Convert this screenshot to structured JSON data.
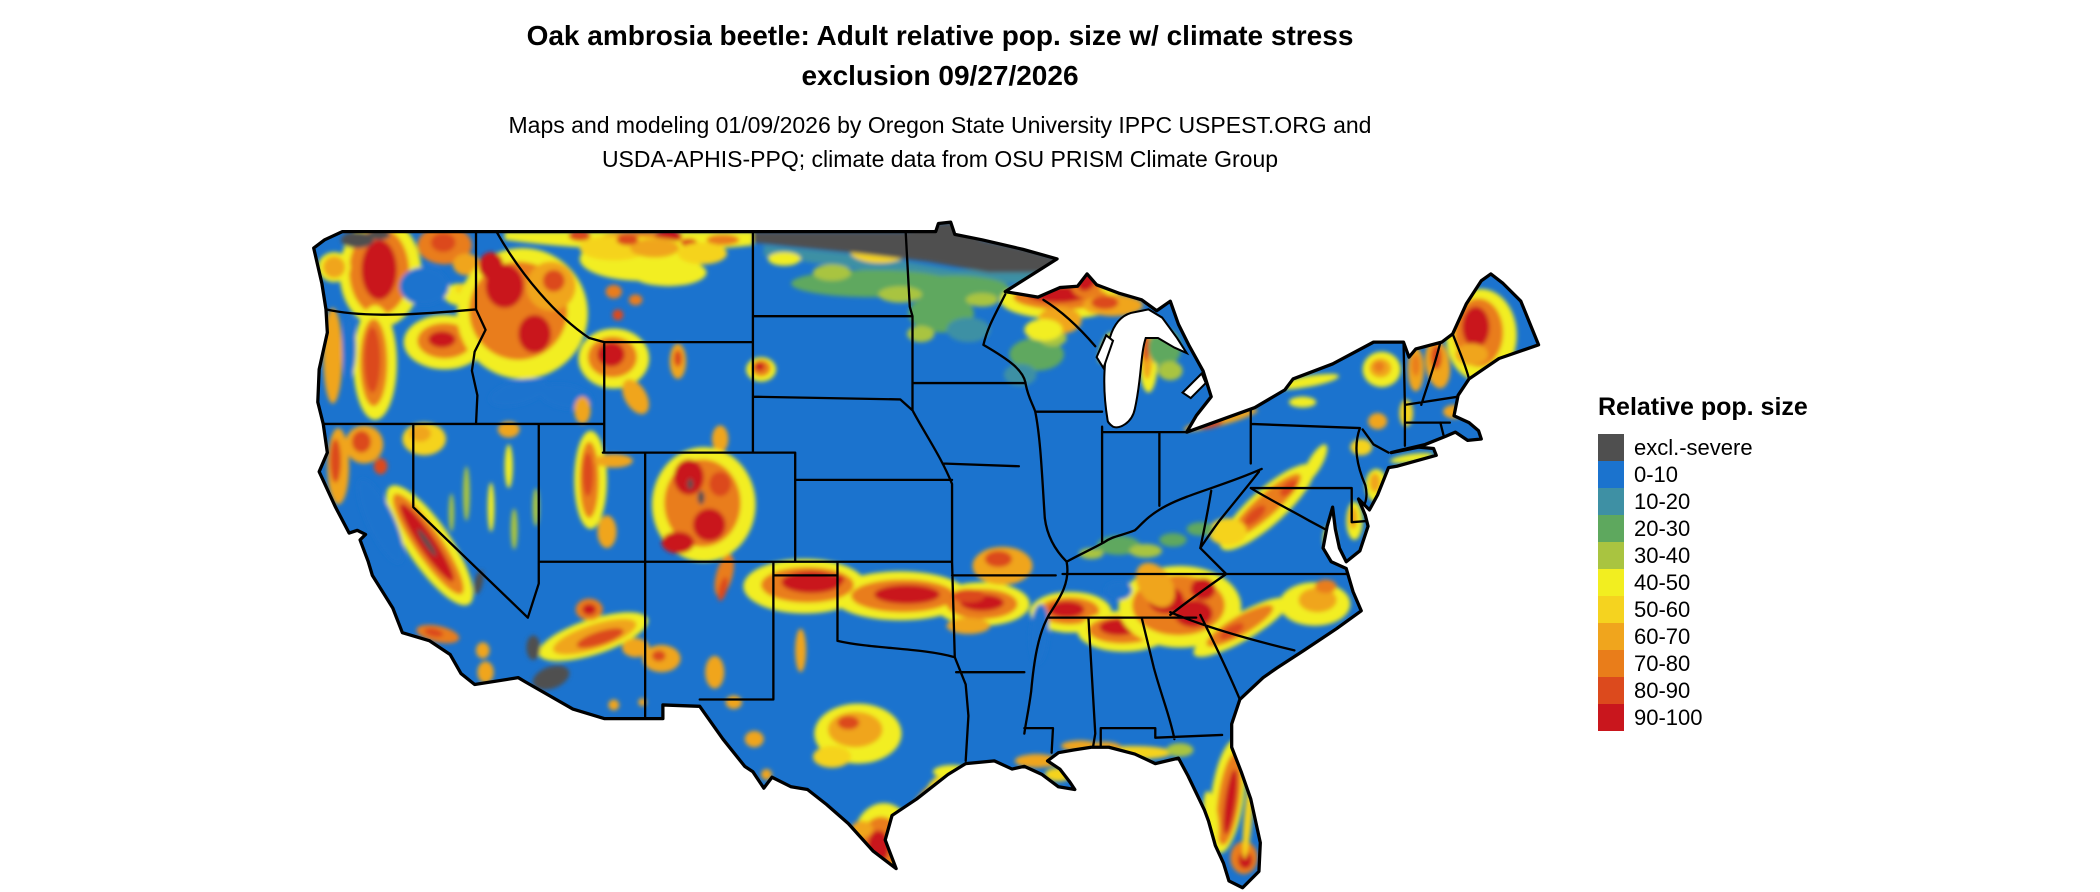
{
  "header": {
    "title_line1": "Oak ambrosia beetle: Adult relative pop. size w/ climate stress",
    "title_line2": "exclusion 09/27/2026",
    "subtitle_line1": "Maps and modeling 01/09/2026 by Oregon State University IPPC USPEST.ORG and",
    "subtitle_line2": "USDA-APHIS-PPQ; climate data from OSU PRISM Climate Group"
  },
  "legend": {
    "title": "Relative pop. size",
    "items": [
      {
        "label": "excl.-severe",
        "color": "#4F4F4F"
      },
      {
        "label": "0-10",
        "color": "#1B73CE"
      },
      {
        "label": "10-20",
        "color": "#3E90A4"
      },
      {
        "label": "20-30",
        "color": "#5EA85E"
      },
      {
        "label": "30-40",
        "color": "#A9C440"
      },
      {
        "label": "40-50",
        "color": "#F2EE20"
      },
      {
        "label": "50-60",
        "color": "#F5D31F"
      },
      {
        "label": "60-70",
        "color": "#F0A51D"
      },
      {
        "label": "70-80",
        "color": "#E97D1A"
      },
      {
        "label": "80-90",
        "color": "#DC4A1D"
      },
      {
        "label": "90-100",
        "color": "#C9161D"
      }
    ]
  }
}
